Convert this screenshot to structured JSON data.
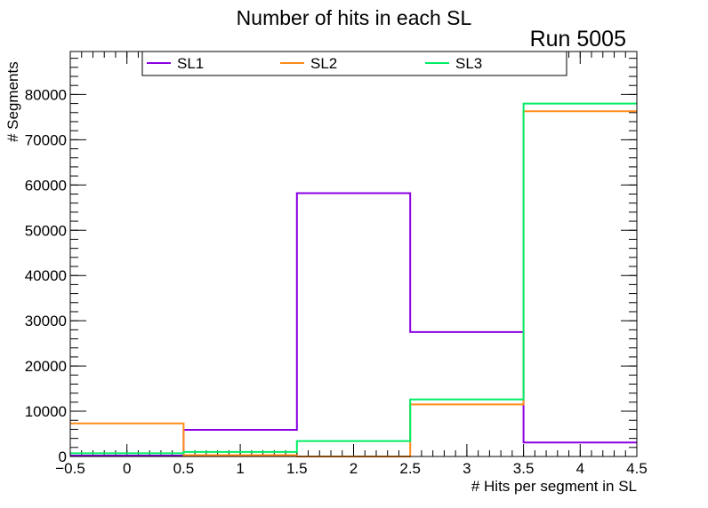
{
  "chart_data": {
    "type": "histogram-step",
    "title": "Number of hits in each SL",
    "annotation": "Run 5005",
    "xlabel": "# Hits per segment in SL",
    "ylabel": "# Segments",
    "xlim": [
      -0.5,
      4.5
    ],
    "ylim": [
      0,
      89500
    ],
    "bin_edges": [
      -0.5,
      0.5,
      1.5,
      2.5,
      3.5,
      4.5
    ],
    "x_ticks": [
      -0.5,
      0,
      0.5,
      1,
      1.5,
      2,
      2.5,
      3,
      3.5,
      4,
      4.5
    ],
    "x_tick_labels": [
      "−0.5",
      "0",
      "0.5",
      "1",
      "1.5",
      "2",
      "2.5",
      "3",
      "3.5",
      "4",
      "4.5"
    ],
    "y_ticks": [
      0,
      10000,
      20000,
      30000,
      40000,
      50000,
      60000,
      70000,
      80000
    ],
    "y_tick_labels": [
      "0",
      "10000",
      "20000",
      "30000",
      "40000",
      "50000",
      "60000",
      "70000",
      "80000"
    ],
    "legend_position": "top",
    "series": [
      {
        "name": "SL1",
        "color": "#8b00e0",
        "values": [
          200,
          5900,
          58200,
          27500,
          3100
        ]
      },
      {
        "name": "SL2",
        "color": "#ff8c1a",
        "values": [
          7300,
          300,
          0,
          11500,
          76300
        ]
      },
      {
        "name": "SL3",
        "color": "#00ee66",
        "values": [
          700,
          1000,
          3400,
          12600,
          78000
        ]
      }
    ]
  }
}
